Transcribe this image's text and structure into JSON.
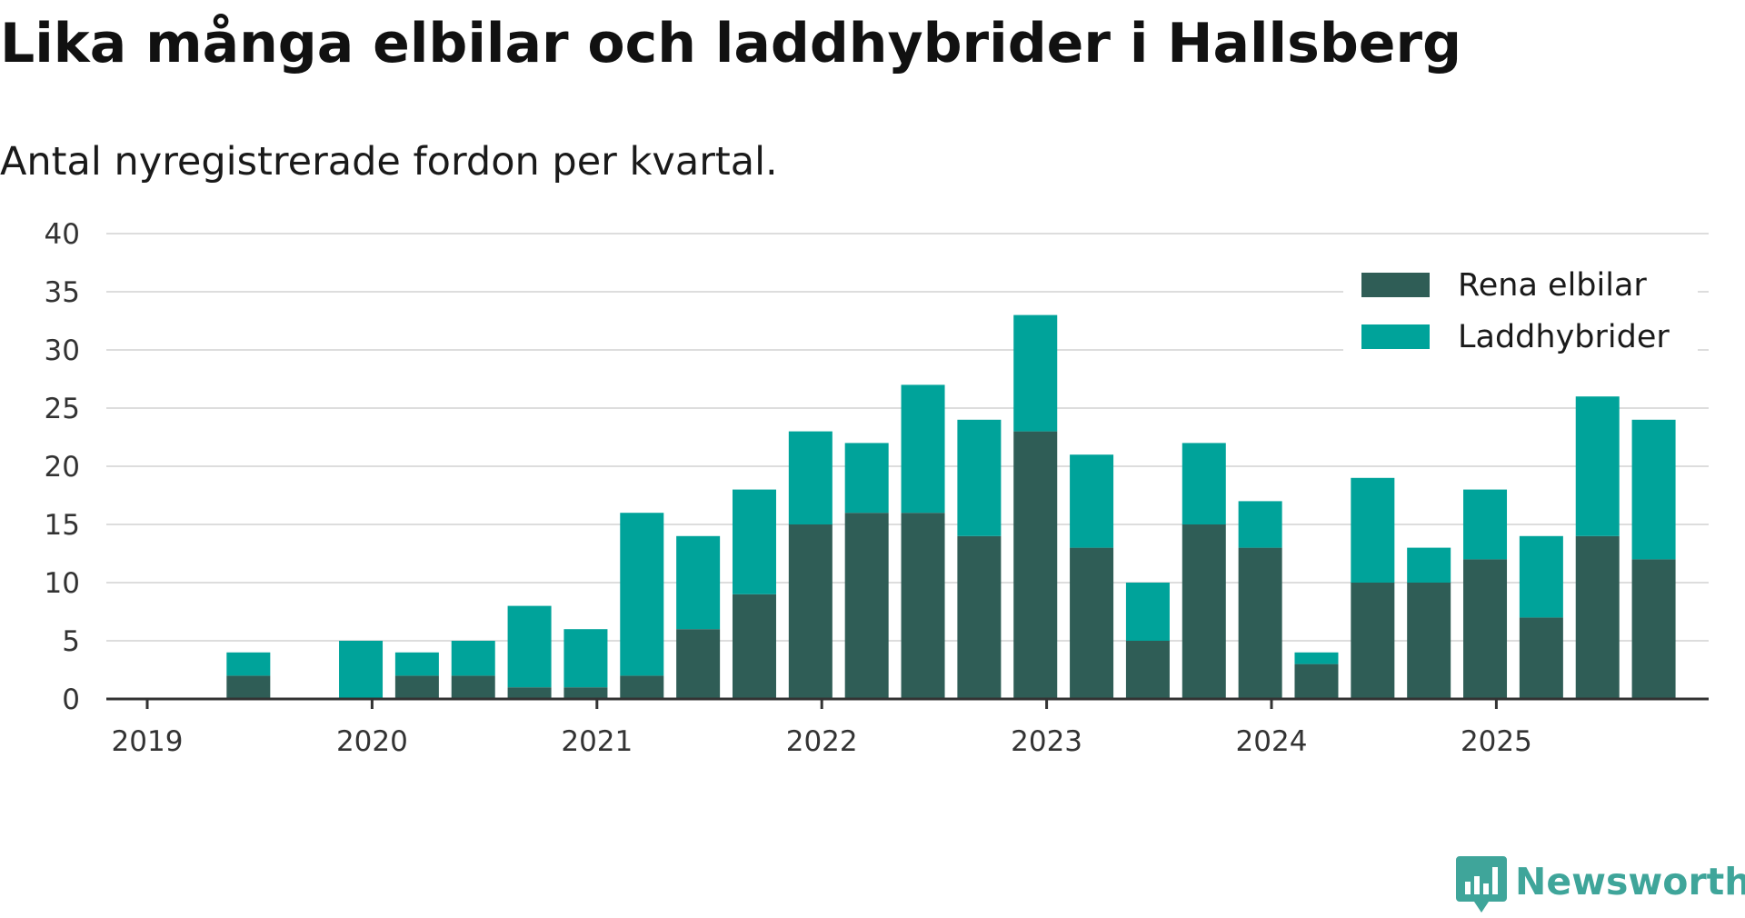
{
  "header": {
    "title": "Lika många elbilar och laddhybrider i Hallsberg",
    "subtitle": "Antal nyregistrerade fordon per kvartal."
  },
  "brand": {
    "name": "Newsworthy",
    "icon": "newsworthy-bar-chart-icon",
    "color": "#3fa59a"
  },
  "colors": {
    "rena_elbilar": "#2f5d56",
    "laddhybrider": "#00a39a",
    "grid": "#dddddd",
    "axis": "#333333"
  },
  "chart_data": {
    "type": "bar",
    "stacked": true,
    "title": "Lika många elbilar och laddhybrider i Hallsberg",
    "subtitle": "Antal nyregistrerade fordon per kvartal.",
    "xlabel": "",
    "ylabel": "",
    "ylim": [
      0,
      40
    ],
    "yticks": [
      0,
      5,
      10,
      15,
      20,
      25,
      30,
      35,
      40
    ],
    "x_tick_labels": [
      "2019",
      "2020",
      "2021",
      "2022",
      "2023",
      "2024",
      "2025"
    ],
    "grid": true,
    "legend_position": "top-right",
    "categories": [
      "2019 Q1",
      "2019 Q2",
      "2019 Q3",
      "2019 Q4",
      "2020 Q1",
      "2020 Q2",
      "2020 Q3",
      "2020 Q4",
      "2021 Q1",
      "2021 Q2",
      "2021 Q3",
      "2021 Q4",
      "2022 Q1",
      "2022 Q2",
      "2022 Q3",
      "2022 Q4",
      "2023 Q1",
      "2023 Q2",
      "2023 Q3",
      "2023 Q4",
      "2024 Q1",
      "2024 Q2",
      "2024 Q3",
      "2024 Q4",
      "2025 Q1",
      "2025 Q2",
      "2025 Q3"
    ],
    "series": [
      {
        "name": "Rena elbilar",
        "key": "rena_elbilar",
        "values": [
          0,
          2,
          0,
          0,
          2,
          2,
          1,
          1,
          2,
          6,
          9,
          15,
          16,
          16,
          14,
          23,
          13,
          5,
          15,
          13,
          3,
          10,
          10,
          12,
          7,
          14,
          12
        ]
      },
      {
        "name": "Laddhybrider",
        "key": "laddhybrider",
        "values": [
          0,
          2,
          0,
          5,
          2,
          3,
          7,
          5,
          14,
          8,
          9,
          8,
          6,
          11,
          10,
          10,
          8,
          5,
          7,
          4,
          1,
          9,
          3,
          6,
          7,
          12,
          12
        ]
      }
    ]
  }
}
